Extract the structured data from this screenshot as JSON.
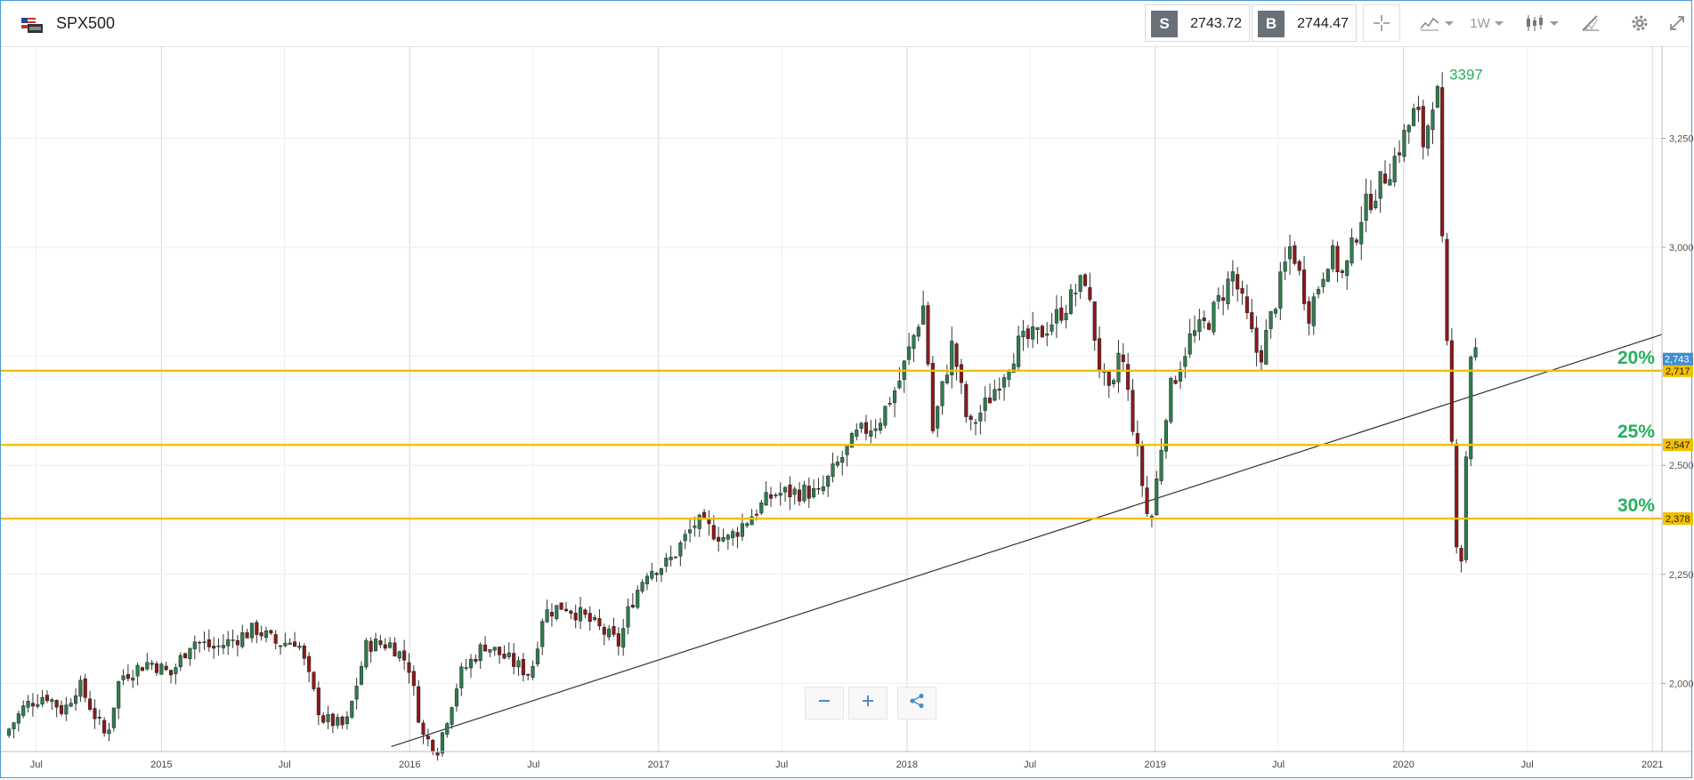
{
  "app": {
    "symbol": "SPX500",
    "sell": {
      "label": "S",
      "value": "2743.72"
    },
    "buy": {
      "label": "B",
      "value": "2744.47"
    },
    "timeframe": "1W",
    "icons": [
      "flag-icon",
      "crosshair-icon",
      "chart-type-icon",
      "candlestick-icon",
      "draw-icon",
      "gear-icon",
      "expand-icon",
      "zoom-out-icon",
      "zoom-in-icon",
      "share-icon"
    ]
  },
  "chart_data": {
    "type": "candlestick",
    "title": "",
    "ylim": [
      1860,
      3410
    ],
    "y_ticks": [
      {
        "value": 2000,
        "label": "2,000"
      },
      {
        "value": 2250,
        "label": "2,250"
      },
      {
        "value": 2500,
        "label": "2,500"
      },
      {
        "value": 2750,
        "label": "2,750"
      },
      {
        "value": 3000,
        "label": "3,000"
      },
      {
        "value": 3250,
        "label": "3,250"
      }
    ],
    "x_range": [
      "2014-05-10",
      "2021-01-15"
    ],
    "x_ticks": [
      {
        "date": "2014-07-01",
        "label": "Jul"
      },
      {
        "date": "2015-01-01",
        "label": "2015"
      },
      {
        "date": "2015-07-01",
        "label": "Jul"
      },
      {
        "date": "2016-01-01",
        "label": "2016"
      },
      {
        "date": "2016-07-01",
        "label": "Jul"
      },
      {
        "date": "2017-01-01",
        "label": "2017"
      },
      {
        "date": "2017-07-01",
        "label": "Jul"
      },
      {
        "date": "2018-01-01",
        "label": "2018"
      },
      {
        "date": "2018-07-01",
        "label": "Jul"
      },
      {
        "date": "2019-01-01",
        "label": "2019"
      },
      {
        "date": "2019-07-01",
        "label": "Jul"
      },
      {
        "date": "2020-01-01",
        "label": "2020"
      },
      {
        "date": "2020-07-01",
        "label": "Jul"
      },
      {
        "date": "2021-01-01",
        "label": "2021"
      }
    ],
    "colors": {
      "up": "#2e7d4f",
      "down": "#8b1a1a",
      "level": "#f2c000",
      "trend": "#333333",
      "pct": "#27ae60",
      "last_price_tag": "#3d8fd1"
    },
    "closes": [
      [
        "2014-05-15",
        1880
      ],
      [
        "2014-06-15",
        1950
      ],
      [
        "2014-07-15",
        1975
      ],
      [
        "2014-08-10",
        1935
      ],
      [
        "2014-09-01",
        2000
      ],
      [
        "2014-10-12",
        1875
      ],
      [
        "2014-11-01",
        2015
      ],
      [
        "2014-12-15",
        2050
      ],
      [
        "2015-01-15",
        2020
      ],
      [
        "2015-02-15",
        2100
      ],
      [
        "2015-03-20",
        2080
      ],
      [
        "2015-05-20",
        2125
      ],
      [
        "2015-06-20",
        2090
      ],
      [
        "2015-07-20",
        2100
      ],
      [
        "2015-08-24",
        1920
      ],
      [
        "2015-09-29",
        1900
      ],
      [
        "2015-10-30",
        2090
      ],
      [
        "2015-12-05",
        2090
      ],
      [
        "2015-12-30",
        2045
      ],
      [
        "2016-01-20",
        1880
      ],
      [
        "2016-02-11",
        1850
      ],
      [
        "2016-03-15",
        2020
      ],
      [
        "2016-04-20",
        2090
      ],
      [
        "2016-06-27",
        2020
      ],
      [
        "2016-07-15",
        2160
      ],
      [
        "2016-08-15",
        2180
      ],
      [
        "2016-09-15",
        2150
      ],
      [
        "2016-11-04",
        2090
      ],
      [
        "2016-11-20",
        2180
      ],
      [
        "2016-12-15",
        2260
      ],
      [
        "2017-01-15",
        2275
      ],
      [
        "2017-02-25",
        2370
      ],
      [
        "2017-04-13",
        2330
      ],
      [
        "2017-05-20",
        2390
      ],
      [
        "2017-06-20",
        2435
      ],
      [
        "2017-08-10",
        2440
      ],
      [
        "2017-08-24",
        2430
      ],
      [
        "2017-09-20",
        2500
      ],
      [
        "2017-10-20",
        2570
      ],
      [
        "2017-11-20",
        2600
      ],
      [
        "2017-12-20",
        2690
      ],
      [
        "2018-01-26",
        2870
      ],
      [
        "2018-02-08",
        2580
      ],
      [
        "2018-03-09",
        2780
      ],
      [
        "2018-04-02",
        2580
      ],
      [
        "2018-05-01",
        2650
      ],
      [
        "2018-06-15",
        2780
      ],
      [
        "2018-07-15",
        2800
      ],
      [
        "2018-08-20",
        2860
      ],
      [
        "2018-09-20",
        2930
      ],
      [
        "2018-10-11",
        2730
      ],
      [
        "2018-10-29",
        2640
      ],
      [
        "2018-11-10",
        2780
      ],
      [
        "2018-12-24",
        2350
      ],
      [
        "2019-01-20",
        2660
      ],
      [
        "2019-02-20",
        2790
      ],
      [
        "2019-03-20",
        2830
      ],
      [
        "2019-04-25",
        2940
      ],
      [
        "2019-05-15",
        2840
      ],
      [
        "2019-06-03",
        2740
      ],
      [
        "2019-07-20",
        3010
      ],
      [
        "2019-08-15",
        2850
      ],
      [
        "2019-09-15",
        2990
      ],
      [
        "2019-10-05",
        2930
      ],
      [
        "2019-11-01",
        3080
      ],
      [
        "2019-12-15",
        3190
      ],
      [
        "2020-01-20",
        3320
      ],
      [
        "2020-01-31",
        3230
      ],
      [
        "2020-02-19",
        3397
      ],
      [
        "2020-02-28",
        2950
      ],
      [
        "2020-03-20",
        2300
      ],
      [
        "2020-03-23",
        2190
      ],
      [
        "2020-04-10",
        2790
      ],
      [
        "2020-04-20",
        2743
      ]
    ],
    "last_price": "2,743.72",
    "levels": [
      {
        "value": 2717,
        "pct": "20%",
        "tag": "2,717"
      },
      {
        "value": 2547,
        "pct": "25%",
        "tag": "2,547"
      },
      {
        "value": 2378,
        "pct": "30%",
        "tag": "2,378"
      }
    ],
    "peak_label": {
      "text": "3397",
      "date": "2020-02-19",
      "value": 3397
    },
    "trendline": [
      [
        "2015-12-05",
        1855
      ],
      [
        "2021-01-15",
        2800
      ]
    ]
  }
}
